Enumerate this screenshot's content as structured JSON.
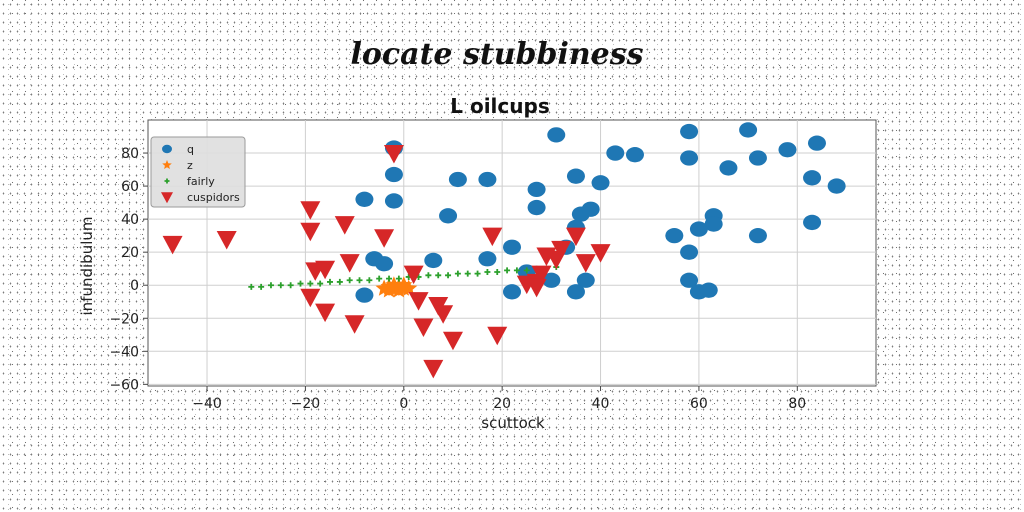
{
  "suptitle": "locate stubbiness",
  "chart_data": {
    "type": "scatter",
    "title": "L oilcups",
    "xlabel": "scuttock",
    "ylabel": "infundibulum",
    "xlim": [
      -52,
      96
    ],
    "ylim": [
      -61,
      100
    ],
    "xticks": [
      -40,
      -20,
      0,
      20,
      40,
      60,
      80
    ],
    "yticks": [
      -60,
      -40,
      -20,
      0,
      20,
      40,
      60,
      80
    ],
    "grid": true,
    "legend_position": "upper-left",
    "series": [
      {
        "name": "q",
        "marker": "circle",
        "color": "#1f77b4",
        "points": [
          [
            31,
            91
          ],
          [
            58,
            93
          ],
          [
            70,
            94
          ],
          [
            -2,
            83
          ],
          [
            43,
            80
          ],
          [
            47,
            79
          ],
          [
            84,
            86
          ],
          [
            78,
            82
          ],
          [
            58,
            77
          ],
          [
            72,
            77
          ],
          [
            66,
            71
          ],
          [
            -2,
            67
          ],
          [
            11,
            64
          ],
          [
            17,
            64
          ],
          [
            35,
            66
          ],
          [
            40,
            62
          ],
          [
            88,
            60
          ],
          [
            83,
            65
          ],
          [
            27,
            58
          ],
          [
            -8,
            52
          ],
          [
            -2,
            51
          ],
          [
            27,
            47
          ],
          [
            9,
            42
          ],
          [
            36,
            43
          ],
          [
            38,
            46
          ],
          [
            63,
            42
          ],
          [
            83,
            38
          ],
          [
            60,
            34
          ],
          [
            63,
            37
          ],
          [
            72,
            30
          ],
          [
            55,
            30
          ],
          [
            22,
            23
          ],
          [
            33,
            23
          ],
          [
            35,
            35
          ],
          [
            58,
            20
          ],
          [
            -6,
            16
          ],
          [
            -4,
            13
          ],
          [
            6,
            15
          ],
          [
            17,
            16
          ],
          [
            25,
            8
          ],
          [
            30,
            3
          ],
          [
            37,
            3
          ],
          [
            58,
            3
          ],
          [
            60,
            -4
          ],
          [
            62,
            -3
          ],
          [
            22,
            -4
          ],
          [
            35,
            -4
          ],
          [
            -8,
            -6
          ]
        ]
      },
      {
        "name": "z",
        "marker": "star",
        "color": "#ff7f0e",
        "points": [
          [
            -4,
            -2
          ],
          [
            -3,
            -1
          ],
          [
            -2,
            -2
          ],
          [
            -1,
            -1
          ],
          [
            0,
            -2
          ],
          [
            -3,
            -3
          ],
          [
            -1,
            -3
          ],
          [
            1,
            -2
          ],
          [
            -2,
            0
          ],
          [
            0,
            0
          ]
        ]
      },
      {
        "name": "fairly",
        "marker": "plus",
        "color": "#2ca02c",
        "points": [
          [
            -31,
            -1
          ],
          [
            -29,
            -1
          ],
          [
            -27,
            0
          ],
          [
            -25,
            0
          ],
          [
            -23,
            0
          ],
          [
            -21,
            1
          ],
          [
            -19,
            1
          ],
          [
            -17,
            1
          ],
          [
            -15,
            2
          ],
          [
            -13,
            2
          ],
          [
            -11,
            3
          ],
          [
            -9,
            3
          ],
          [
            -7,
            3
          ],
          [
            -5,
            4
          ],
          [
            -3,
            4
          ],
          [
            -1,
            4
          ],
          [
            1,
            5
          ],
          [
            3,
            5
          ],
          [
            5,
            6
          ],
          [
            7,
            6
          ],
          [
            9,
            6
          ],
          [
            11,
            7
          ],
          [
            13,
            7
          ],
          [
            15,
            7
          ],
          [
            17,
            8
          ],
          [
            19,
            8
          ],
          [
            21,
            9
          ],
          [
            23,
            9
          ],
          [
            25,
            9
          ],
          [
            27,
            10
          ],
          [
            29,
            10
          ],
          [
            31,
            11
          ]
        ]
      },
      {
        "name": "cuspidors",
        "marker": "triangle-down",
        "color": "#d62728",
        "points": [
          [
            -2,
            80
          ],
          [
            -19,
            46
          ],
          [
            -12,
            37
          ],
          [
            -19,
            33
          ],
          [
            -4,
            29
          ],
          [
            -36,
            28
          ],
          [
            -47,
            25
          ],
          [
            18,
            30
          ],
          [
            35,
            30
          ],
          [
            -11,
            14
          ],
          [
            -16,
            10
          ],
          [
            -18,
            9
          ],
          [
            2,
            7
          ],
          [
            28,
            7
          ],
          [
            27,
            2
          ],
          [
            25,
            1
          ],
          [
            -19,
            -7
          ],
          [
            3,
            -9
          ],
          [
            7,
            -12
          ],
          [
            -16,
            -16
          ],
          [
            8,
            -17
          ],
          [
            -10,
            -23
          ],
          [
            4,
            -25
          ],
          [
            19,
            -30
          ],
          [
            10,
            -33
          ],
          [
            6,
            -50
          ],
          [
            31,
            16
          ],
          [
            37,
            14
          ],
          [
            40,
            20
          ],
          [
            27,
            -1
          ],
          [
            29,
            18
          ],
          [
            32,
            22
          ]
        ]
      }
    ]
  }
}
